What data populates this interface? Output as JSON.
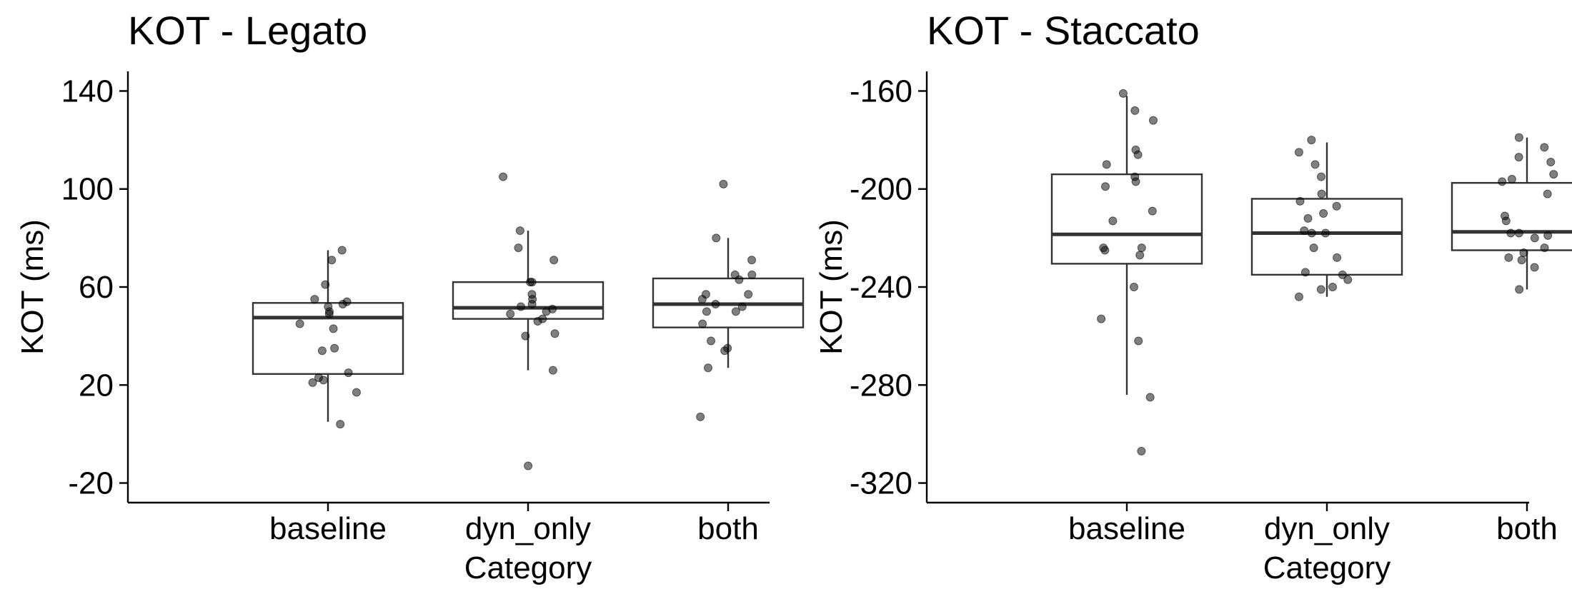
{
  "chart_data": [
    {
      "type": "box",
      "title": "KOT - Legato",
      "xlabel": "Category",
      "ylabel": "KOT (ms)",
      "categories": [
        "baseline",
        "dyn_only",
        "both"
      ],
      "ylim": [
        -28,
        148
      ],
      "yticks": [
        -20,
        20,
        60,
        100,
        140
      ],
      "grid": false,
      "boxes": [
        {
          "category": "baseline",
          "q1": 24.5,
          "median": 47.5,
          "q3": 53.5,
          "whisker_low": 5,
          "whisker_high": 75
        },
        {
          "category": "dyn_only",
          "q1": 47,
          "median": 51.5,
          "q3": 62,
          "whisker_low": 26,
          "whisker_high": 83
        },
        {
          "category": "both",
          "q1": 43.5,
          "median": 53,
          "q3": 63.5,
          "whisker_low": 27,
          "whisker_high": 80
        }
      ],
      "points": [
        {
          "category": "baseline",
          "values": [
            75,
            71,
            61,
            55,
            54,
            53,
            52,
            50,
            49,
            45,
            43,
            35,
            34,
            25,
            23,
            22,
            21,
            17,
            4
          ]
        },
        {
          "category": "dyn_only",
          "values": [
            105,
            83,
            76,
            71,
            62,
            62,
            57,
            55,
            53,
            52,
            51,
            50,
            49,
            47,
            46,
            41,
            40,
            26,
            -13
          ]
        },
        {
          "category": "both",
          "values": [
            102,
            80,
            71,
            65,
            65,
            63,
            57,
            57,
            55,
            53,
            52,
            50,
            50,
            45,
            38,
            35,
            34,
            27,
            7
          ]
        }
      ]
    },
    {
      "type": "box",
      "title": "KOT - Staccato",
      "xlabel": "Category",
      "ylabel": "KOT (ms)",
      "categories": [
        "baseline",
        "dyn_only",
        "both"
      ],
      "ylim": [
        -328,
        -152
      ],
      "yticks": [
        -320,
        -280,
        -240,
        -200,
        -160
      ],
      "grid": false,
      "boxes": [
        {
          "category": "baseline",
          "q1": -230.5,
          "median": -218.5,
          "q3": -194,
          "whisker_low": -284,
          "whisker_high": -162
        },
        {
          "category": "dyn_only",
          "q1": -235,
          "median": -218,
          "q3": -204,
          "whisker_low": -244,
          "whisker_high": -181
        },
        {
          "category": "both",
          "q1": -225,
          "median": -217.5,
          "q3": -197.5,
          "whisker_low": -241,
          "whisker_high": -179
        }
      ],
      "points": [
        {
          "category": "baseline",
          "values": [
            -161,
            -168,
            -172,
            -184,
            -186,
            -190,
            -195,
            -197,
            -199,
            -209,
            -213,
            -224,
            -224,
            -225,
            -227,
            -240,
            -253,
            -262,
            -285,
            -307
          ]
        },
        {
          "category": "dyn_only",
          "values": [
            -180,
            -185,
            -190,
            -195,
            -202,
            -205,
            -207,
            -210,
            -212,
            -217,
            -218,
            -218,
            -224,
            -228,
            -234,
            -235,
            -237,
            -240,
            -241,
            -244
          ]
        },
        {
          "category": "both",
          "values": [
            -179,
            -183,
            -187,
            -189,
            -194,
            -196,
            -197,
            -202,
            -211,
            -213,
            -218,
            -218,
            -219,
            -220,
            -224,
            -226,
            -228,
            -229,
            -232,
            -241
          ]
        }
      ]
    }
  ]
}
